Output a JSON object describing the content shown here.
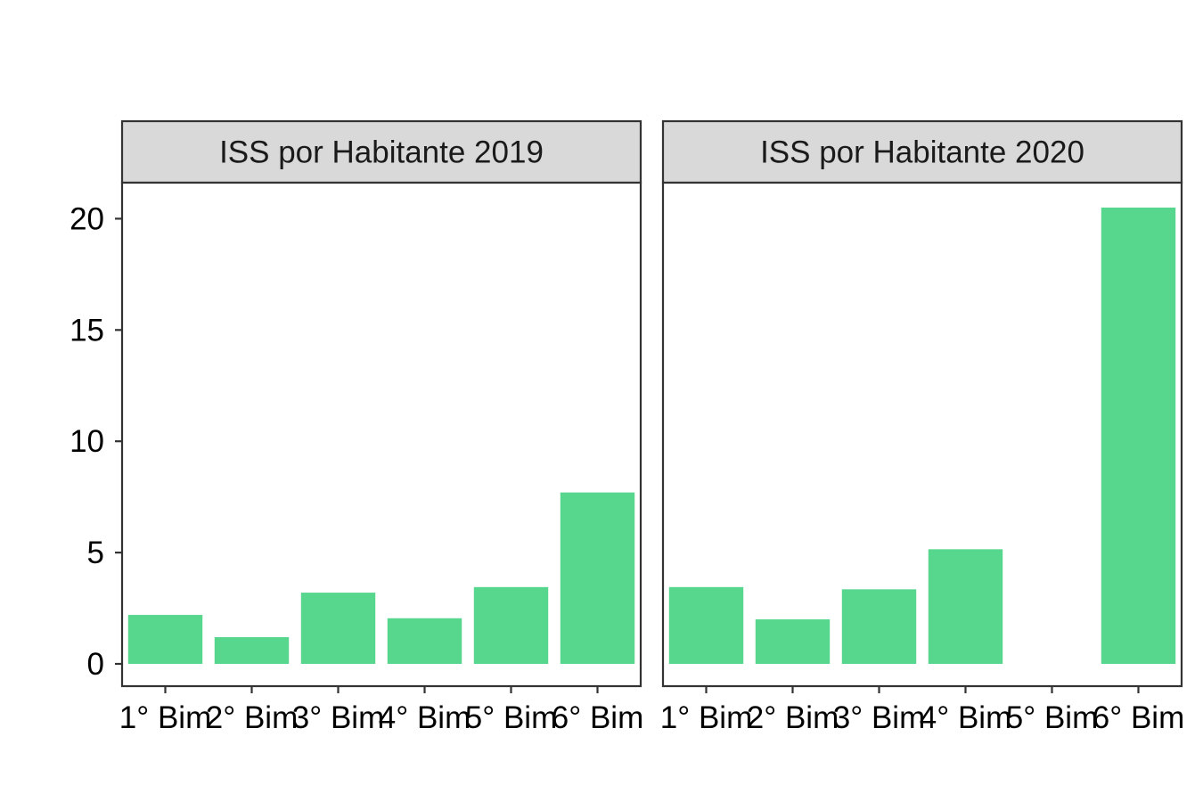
{
  "colors": {
    "bar": "#57d68d",
    "strip_background": "#d9d9d9",
    "panel_border": "#333333",
    "tick": "#333333"
  },
  "chart_data": {
    "type": "bar",
    "layout": "facets",
    "grid": false,
    "ylim": [
      0,
      21.5
    ],
    "y_ticks": [
      0,
      5,
      10,
      15,
      20
    ],
    "y_tick_labels": [
      "0",
      "5",
      "10",
      "15",
      "20"
    ],
    "categories": [
      "1° Bim",
      "2° Bim",
      "3° Bim",
      "4° Bim",
      "5° Bim",
      "6° Bim"
    ],
    "facets": [
      {
        "title": "ISS por Habitante 2019",
        "values": [
          2.2,
          1.2,
          3.2,
          2.05,
          3.45,
          7.7
        ]
      },
      {
        "title": "ISS por Habitante 2020",
        "values": [
          3.45,
          2.0,
          3.35,
          5.15,
          null,
          20.5
        ]
      }
    ],
    "xlabel": "",
    "ylabel": ""
  }
}
